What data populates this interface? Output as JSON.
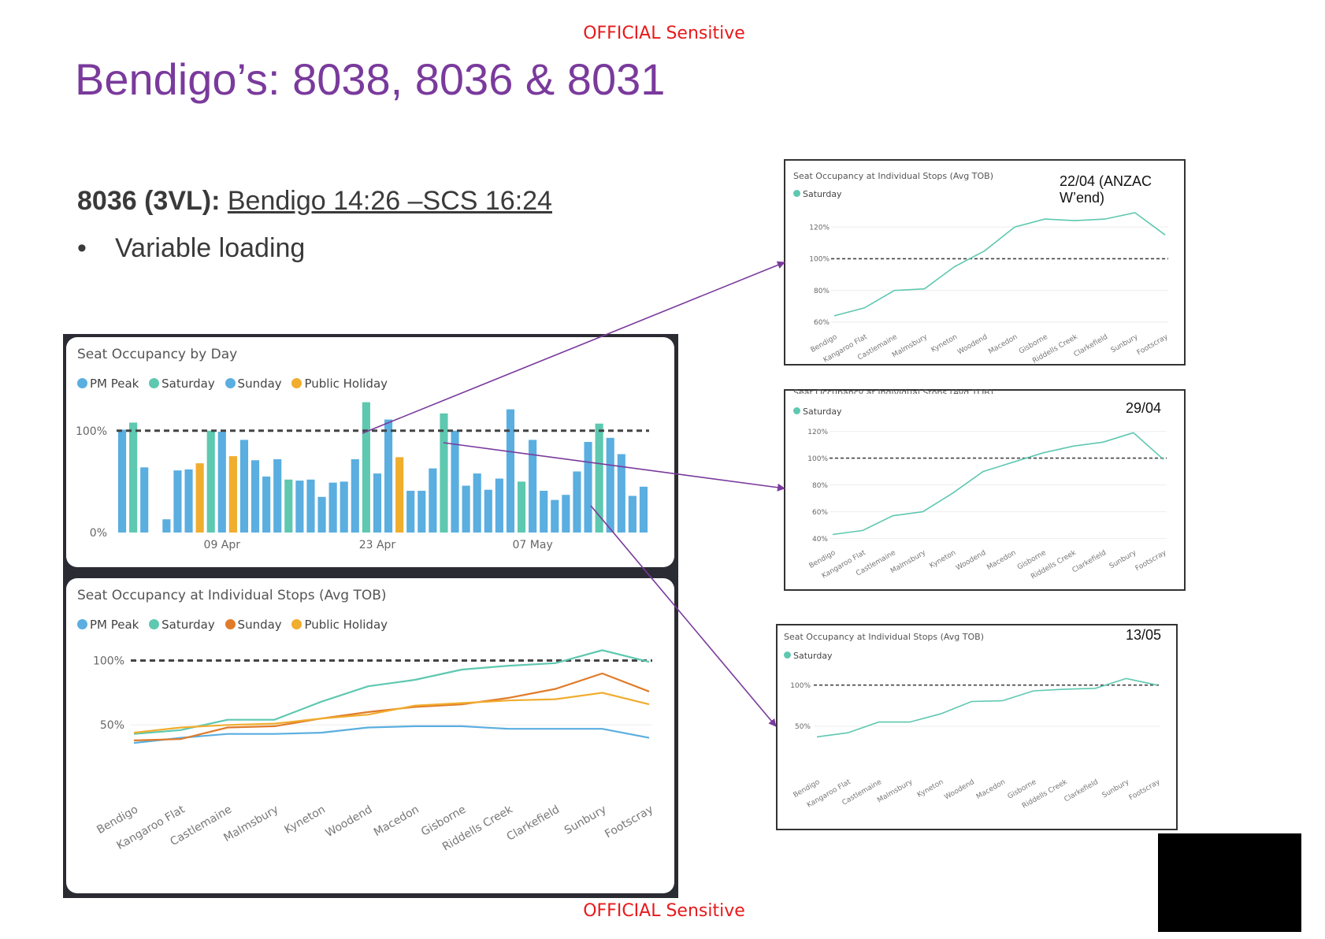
{
  "classification_top": "OFFICIAL Sensitive",
  "classification_bottom": "OFFICIAL Sensitive",
  "title": "Bendigo’s: 8038, 8036 & 8031",
  "service": {
    "id": "8036 (3VL):",
    "route": "Bendigo 14:26 –SCS 16:24"
  },
  "bullets": [
    "Variable loading"
  ],
  "colors": {
    "pm_peak": "#5aaee0",
    "saturday": "#5ec8b0",
    "sunday": "#e07b2a",
    "public_holiday": "#f0ad2e",
    "arrow": "#7a3a9c",
    "title": "#7a3a9c",
    "classification": "#e8191b"
  },
  "chart_data": [
    {
      "id": "by-day",
      "type": "bar",
      "title": "Seat Occupancy by Day",
      "legend": [
        "PM Peak",
        "Saturday",
        "Sunday",
        "Public Holiday"
      ],
      "y_ticks": [
        "0%",
        "100%"
      ],
      "ylim": [
        0,
        130
      ],
      "reference_line": 100,
      "x_tick_labels": [
        "09 Apr",
        "23 Apr",
        "07 May"
      ],
      "bars": [
        {
          "v": 101,
          "s": "PM Peak"
        },
        {
          "v": 108,
          "s": "Saturday"
        },
        {
          "v": 64,
          "s": "PM Peak"
        },
        {
          "v": 0,
          "s": "PM Peak"
        },
        {
          "v": 13,
          "s": "PM Peak"
        },
        {
          "v": 61,
          "s": "PM Peak"
        },
        {
          "v": 62,
          "s": "PM Peak"
        },
        {
          "v": 68,
          "s": "Public Holiday"
        },
        {
          "v": 100,
          "s": "Saturday"
        },
        {
          "v": 99,
          "s": "PM Peak"
        },
        {
          "v": 75,
          "s": "Public Holiday"
        },
        {
          "v": 91,
          "s": "PM Peak"
        },
        {
          "v": 71,
          "s": "PM Peak"
        },
        {
          "v": 55,
          "s": "PM Peak"
        },
        {
          "v": 72,
          "s": "PM Peak"
        },
        {
          "v": 52,
          "s": "Saturday"
        },
        {
          "v": 51,
          "s": "PM Peak"
        },
        {
          "v": 52,
          "s": "PM Peak"
        },
        {
          "v": 35,
          "s": "PM Peak"
        },
        {
          "v": 49,
          "s": "PM Peak"
        },
        {
          "v": 50,
          "s": "PM Peak"
        },
        {
          "v": 72,
          "s": "PM Peak"
        },
        {
          "v": 128,
          "s": "Saturday"
        },
        {
          "v": 58,
          "s": "PM Peak"
        },
        {
          "v": 111,
          "s": "PM Peak"
        },
        {
          "v": 74,
          "s": "Public Holiday"
        },
        {
          "v": 41,
          "s": "PM Peak"
        },
        {
          "v": 41,
          "s": "PM Peak"
        },
        {
          "v": 63,
          "s": "PM Peak"
        },
        {
          "v": 117,
          "s": "Saturday"
        },
        {
          "v": 100,
          "s": "PM Peak"
        },
        {
          "v": 46,
          "s": "PM Peak"
        },
        {
          "v": 58,
          "s": "PM Peak"
        },
        {
          "v": 42,
          "s": "PM Peak"
        },
        {
          "v": 53,
          "s": "PM Peak"
        },
        {
          "v": 121,
          "s": "PM Peak"
        },
        {
          "v": 50,
          "s": "Saturday"
        },
        {
          "v": 91,
          "s": "PM Peak"
        },
        {
          "v": 41,
          "s": "PM Peak"
        },
        {
          "v": 32,
          "s": "PM Peak"
        },
        {
          "v": 37,
          "s": "PM Peak"
        },
        {
          "v": 60,
          "s": "PM Peak"
        },
        {
          "v": 89,
          "s": "PM Peak"
        },
        {
          "v": 107,
          "s": "Saturday"
        },
        {
          "v": 93,
          "s": "PM Peak"
        },
        {
          "v": 77,
          "s": "PM Peak"
        },
        {
          "v": 36,
          "s": "PM Peak"
        },
        {
          "v": 45,
          "s": "PM Peak"
        }
      ]
    },
    {
      "id": "by-stop",
      "type": "line",
      "title": "Seat Occupancy at Individual Stops (Avg TOB)",
      "legend": [
        "PM Peak",
        "Saturday",
        "Sunday",
        "Public Holiday"
      ],
      "y_ticks": [
        "50%",
        "100%"
      ],
      "ylim": [
        0,
        115
      ],
      "reference_line": 100,
      "categories": [
        "Bendigo",
        "Kangaroo Flat",
        "Castlemaine",
        "Malmsbury",
        "Kyneton",
        "Woodend",
        "Macedon",
        "Gisborne",
        "Riddells Creek",
        "Clarkefield",
        "Sunbury",
        "Footscray"
      ],
      "series": [
        {
          "name": "PM Peak",
          "values": [
            36,
            40,
            43,
            43,
            44,
            48,
            49,
            49,
            47,
            47,
            47,
            40
          ]
        },
        {
          "name": "Saturday",
          "values": [
            43,
            46,
            54,
            54,
            68,
            80,
            85,
            93,
            96,
            98,
            108,
            99
          ]
        },
        {
          "name": "Sunday",
          "values": [
            38,
            39,
            48,
            49,
            55,
            60,
            64,
            66,
            71,
            78,
            90,
            76
          ]
        },
        {
          "name": "Public Holiday",
          "values": [
            44,
            48,
            50,
            51,
            55,
            58,
            65,
            67,
            69,
            70,
            75,
            66
          ]
        }
      ]
    },
    {
      "id": "inset-2204",
      "type": "line",
      "title": "Seat Occupancy at Individual Stops (Avg TOB)",
      "annotation": "22/04 (ANZAC W’end)",
      "legend": [
        "Saturday"
      ],
      "y_ticks": [
        "60%",
        "80%",
        "100%",
        "120%"
      ],
      "ylim": [
        58,
        132
      ],
      "reference_line": 100,
      "categories": [
        "Bendigo",
        "Kangaroo Flat",
        "Castlemaine",
        "Malmsbury",
        "Kyneton",
        "Woodend",
        "Macedon",
        "Gisborne",
        "Riddells Creek",
        "Clarkefield",
        "Sunbury",
        "Footscray"
      ],
      "series": [
        {
          "name": "Saturday",
          "values": [
            64,
            69,
            80,
            81,
            95,
            105,
            120,
            125,
            124,
            125,
            129,
            115
          ]
        }
      ]
    },
    {
      "id": "inset-2904",
      "type": "line",
      "title": "Seat Occupancy at Individual Stops (Avg TOB)",
      "annotation": "29/04",
      "legend": [
        "Saturday"
      ],
      "y_ticks": [
        "40%",
        "60%",
        "80%",
        "100%",
        "120%"
      ],
      "ylim": [
        38,
        128
      ],
      "reference_line": 100,
      "categories": [
        "Bendigo",
        "Kangaroo Flat",
        "Castlemaine",
        "Malmsbury",
        "Kyneton",
        "Woodend",
        "Macedon",
        "Gisborne",
        "Riddells Creek",
        "Clarkefield",
        "Sunbury",
        "Footscray"
      ],
      "series": [
        {
          "name": "Saturday",
          "values": [
            43,
            46,
            57,
            60,
            74,
            90,
            97,
            104,
            109,
            112,
            119,
            99
          ]
        }
      ]
    },
    {
      "id": "inset-1305",
      "type": "line",
      "title": "Seat Occupancy at Individual Stops (Avg TOB)",
      "annotation": "13/05",
      "legend": [
        "Saturday"
      ],
      "y_ticks": [
        "50%",
        "100%"
      ],
      "ylim": [
        0,
        115
      ],
      "reference_line": 100,
      "categories": [
        "Bendigo",
        "Kangaroo Flat",
        "Castlemaine",
        "Malmsbury",
        "Kyneton",
        "Woodend",
        "Macedon",
        "Gisborne",
        "Riddells Creek",
        "Clarkefield",
        "Sunbury",
        "Footscray"
      ],
      "series": [
        {
          "name": "Saturday",
          "values": [
            37,
            42,
            55,
            55,
            65,
            80,
            81,
            93,
            95,
            96,
            108,
            100
          ]
        }
      ]
    }
  ]
}
